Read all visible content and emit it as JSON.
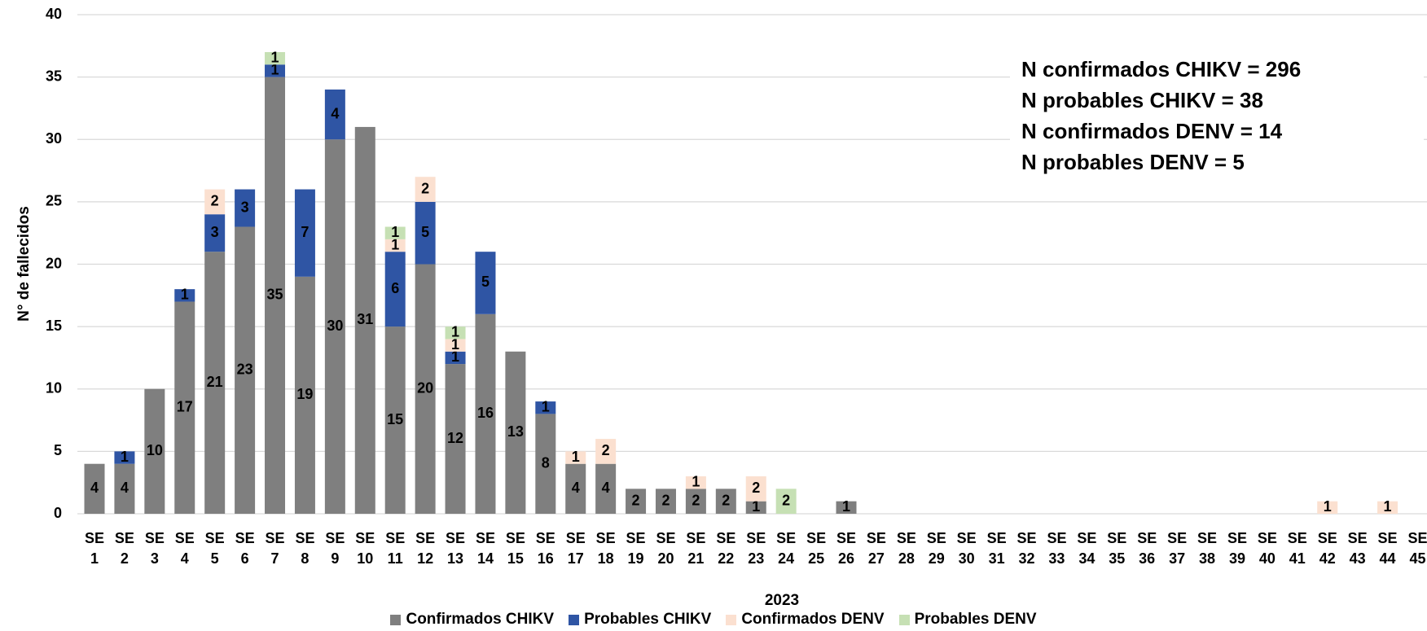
{
  "chart_data": {
    "type": "stacked_bar",
    "ylabel": "N° de fallecidos",
    "xlabel": "2023",
    "annotations": [
      "N confirmados CHIKV = 296",
      "N probables CHIKV = 38",
      "N confirmados DENV = 14",
      "N probables DENV = 5"
    ],
    "categories": [
      "SE 1",
      "SE 2",
      "SE 3",
      "SE 4",
      "SE 5",
      "SE 6",
      "SE 7",
      "SE 8",
      "SE 9",
      "SE 10",
      "SE 11",
      "SE 12",
      "SE 13",
      "SE 14",
      "SE 15",
      "SE 16",
      "SE 17",
      "SE 18",
      "SE 19",
      "SE 20",
      "SE 21",
      "SE 22",
      "SE 23",
      "SE 24",
      "SE 25",
      "SE 26",
      "SE 27",
      "SE 28",
      "SE 29",
      "SE 30",
      "SE 31",
      "SE 32",
      "SE 33",
      "SE 34",
      "SE 35",
      "SE 36",
      "SE 37",
      "SE 38",
      "SE 39",
      "SE 40",
      "SE 41",
      "SE 42",
      "SE 43",
      "SE 44",
      "SE 45"
    ],
    "series": [
      {
        "name": "Confirmados CHIKV",
        "color": "#7f7f7f",
        "values": [
          4,
          4,
          10,
          17,
          21,
          23,
          35,
          19,
          30,
          31,
          15,
          20,
          12,
          16,
          13,
          8,
          4,
          4,
          2,
          2,
          2,
          2,
          1,
          0,
          0,
          1,
          0,
          0,
          0,
          0,
          0,
          0,
          0,
          0,
          0,
          0,
          0,
          0,
          0,
          0,
          0,
          0,
          0,
          0,
          0
        ]
      },
      {
        "name": "Probables CHIKV",
        "color": "#2f55a4",
        "values": [
          0,
          1,
          0,
          1,
          3,
          3,
          1,
          7,
          4,
          0,
          6,
          5,
          1,
          5,
          0,
          1,
          0,
          0,
          0,
          0,
          0,
          0,
          0,
          0,
          0,
          0,
          0,
          0,
          0,
          0,
          0,
          0,
          0,
          0,
          0,
          0,
          0,
          0,
          0,
          0,
          0,
          0,
          0,
          0,
          0
        ]
      },
      {
        "name": "Confirmados DENV",
        "color": "#fbe0d0",
        "values": [
          0,
          0,
          0,
          0,
          2,
          0,
          0,
          0,
          0,
          0,
          1,
          2,
          1,
          0,
          0,
          0,
          1,
          2,
          0,
          0,
          1,
          0,
          2,
          0,
          0,
          0,
          0,
          0,
          0,
          0,
          0,
          0,
          0,
          0,
          0,
          0,
          0,
          0,
          0,
          0,
          0,
          1,
          0,
          1,
          0
        ]
      },
      {
        "name": "Probables DENV",
        "color": "#c6e0b4",
        "values": [
          0,
          0,
          0,
          0,
          0,
          0,
          1,
          0,
          0,
          0,
          1,
          0,
          1,
          0,
          0,
          0,
          0,
          0,
          0,
          0,
          0,
          0,
          0,
          2,
          0,
          0,
          0,
          0,
          0,
          0,
          0,
          0,
          0,
          0,
          0,
          0,
          0,
          0,
          0,
          0,
          0,
          0,
          0,
          0,
          0
        ]
      }
    ],
    "ylim": [
      0,
      40
    ],
    "yticks": [
      0,
      5,
      10,
      15,
      20,
      25,
      30,
      35,
      40
    ],
    "grid": true
  }
}
